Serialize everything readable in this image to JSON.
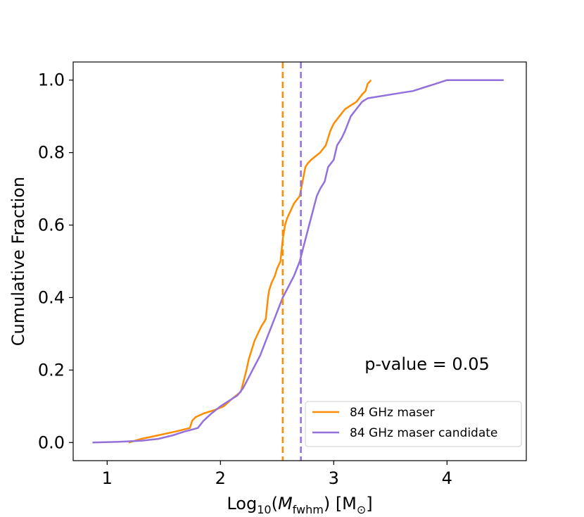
{
  "chart_data": {
    "type": "line",
    "title": "",
    "xlabel": {
      "prefix": "Log",
      "sub1": "10",
      "open": "(",
      "var": "M",
      "sub2": "fwhm",
      "close": ") [M",
      "sub3": "⊙",
      "end": "]"
    },
    "ylabel": "Cumulative Fraction",
    "xlim": [
      0.7,
      4.7
    ],
    "ylim": [
      -0.05,
      1.05
    ],
    "xticks": [
      1,
      2,
      3,
      4
    ],
    "xtick_labels": [
      "1",
      "2",
      "3",
      "4"
    ],
    "yticks": [
      0.0,
      0.2,
      0.4,
      0.6,
      0.8,
      1.0
    ],
    "ytick_labels": [
      "0.0",
      "0.2",
      "0.4",
      "0.6",
      "0.8",
      "1.0"
    ],
    "grid": false,
    "legend_position": "lower-right",
    "annotation": "p-value = 0.05",
    "series": [
      {
        "name": "84 GHz maser",
        "color": "#ff8c00",
        "x": [
          1.19,
          1.3,
          1.45,
          1.6,
          1.73,
          1.75,
          1.78,
          1.85,
          1.95,
          2.03,
          2.1,
          2.18,
          2.23,
          2.25,
          2.27,
          2.3,
          2.33,
          2.36,
          2.4,
          2.42,
          2.43,
          2.45,
          2.48,
          2.5,
          2.53,
          2.55,
          2.56,
          2.57,
          2.59,
          2.62,
          2.65,
          2.7,
          2.75,
          2.77,
          2.8,
          2.88,
          2.93,
          2.97,
          3.0,
          3.05,
          3.1,
          3.15,
          3.2,
          3.25,
          3.28,
          3.3,
          3.33
        ],
        "y": [
          0.0,
          0.01,
          0.02,
          0.03,
          0.04,
          0.06,
          0.07,
          0.08,
          0.09,
          0.1,
          0.12,
          0.14,
          0.2,
          0.23,
          0.25,
          0.28,
          0.3,
          0.32,
          0.34,
          0.4,
          0.42,
          0.44,
          0.46,
          0.48,
          0.5,
          0.56,
          0.58,
          0.6,
          0.62,
          0.64,
          0.66,
          0.68,
          0.76,
          0.77,
          0.78,
          0.8,
          0.82,
          0.86,
          0.88,
          0.9,
          0.92,
          0.93,
          0.94,
          0.96,
          0.97,
          0.99,
          1.0
        ]
      },
      {
        "name": "84 GHz maser candidate",
        "color": "#9370db",
        "x": [
          0.87,
          1.1,
          1.3,
          1.45,
          1.58,
          1.68,
          1.8,
          1.85,
          1.92,
          2.0,
          2.05,
          2.1,
          2.15,
          2.2,
          2.25,
          2.3,
          2.35,
          2.4,
          2.45,
          2.5,
          2.55,
          2.6,
          2.65,
          2.7,
          2.75,
          2.8,
          2.85,
          2.88,
          2.92,
          2.95,
          3.0,
          3.03,
          3.07,
          3.1,
          3.15,
          3.2,
          3.25,
          3.3,
          3.4,
          3.5,
          3.6,
          3.7,
          3.8,
          3.9,
          4.0,
          4.2,
          4.5
        ],
        "y": [
          0.0,
          0.002,
          0.005,
          0.01,
          0.02,
          0.03,
          0.04,
          0.06,
          0.08,
          0.1,
          0.11,
          0.12,
          0.13,
          0.15,
          0.18,
          0.21,
          0.24,
          0.28,
          0.32,
          0.36,
          0.4,
          0.43,
          0.46,
          0.5,
          0.56,
          0.62,
          0.68,
          0.7,
          0.72,
          0.76,
          0.78,
          0.82,
          0.84,
          0.86,
          0.9,
          0.92,
          0.94,
          0.95,
          0.955,
          0.96,
          0.965,
          0.97,
          0.98,
          0.99,
          1.0,
          1.0,
          1.0
        ]
      }
    ],
    "vlines": [
      {
        "series": "84 GHz maser",
        "x": 2.55,
        "color": "#ff8c00",
        "style": "dashed"
      },
      {
        "series": "84 GHz maser candidate",
        "x": 2.71,
        "color": "#9370db",
        "style": "dashed"
      }
    ]
  }
}
